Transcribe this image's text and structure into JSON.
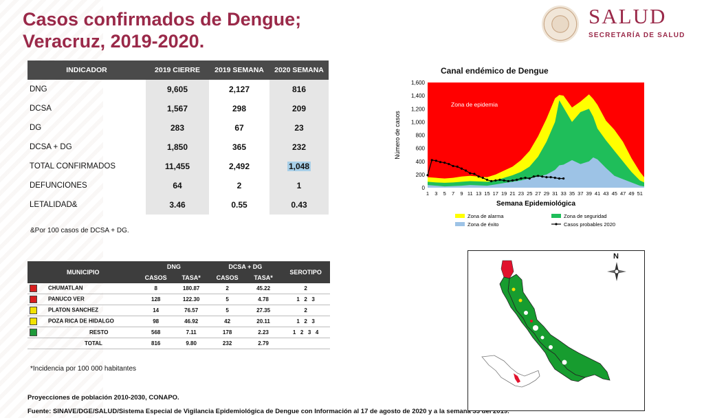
{
  "header": {
    "title_line1": "Casos confirmados de Dengue;",
    "title_line2": "Veracruz, 2019-2020.",
    "logo_word": "SALUD",
    "logo_sub": "SECRETARÍA DE SALUD",
    "seal_icon": "mexico-coat-of-arms-seal-icon"
  },
  "indicators": {
    "headers": [
      "INDICADOR",
      "2019 CIERRE",
      "2019 SEMANA",
      "2020 SEMANA"
    ],
    "rows": [
      {
        "label": "DNG",
        "v2019c": "9,605",
        "v2019s": "2,127",
        "v2020s": "816"
      },
      {
        "label": "DCSA",
        "v2019c": "1,567",
        "v2019s": "298",
        "v2020s": "209"
      },
      {
        "label": "DG",
        "v2019c": "283",
        "v2019s": "67",
        "v2020s": "23"
      },
      {
        "label": "DCSA + DG",
        "v2019c": "1,850",
        "v2019s": "365",
        "v2020s": "232"
      },
      {
        "label": "TOTAL CONFIRMADOS",
        "v2019c": "11,455",
        "v2019s": "2,492",
        "v2020s": "1,048"
      },
      {
        "label": "DEFUNCIONES",
        "v2019c": "64",
        "v2019s": "2",
        "v2020s": "1"
      },
      {
        "label": "LETALIDAD&",
        "v2019c": "3.46",
        "v2019s": "0.55",
        "v2020s": "0.43"
      }
    ],
    "footnote": "&Por 100 casos de DCSA + DG."
  },
  "municipios": {
    "headers": {
      "municipio": "MUNICIPIO",
      "dng": "DNG",
      "dcsa": "DCSA + DG",
      "casos": "CASOS",
      "tasa": "TASA*",
      "serotipo": "SEROTIPO"
    },
    "rows": [
      {
        "name": "CHUMATLAN",
        "color": "#d81e1e",
        "dng_casos": "8",
        "dng_tasa": "180.87",
        "dcsa_casos": "2",
        "dcsa_tasa": "45.22",
        "serotipos": [
          "2"
        ]
      },
      {
        "name": "PANUCO VER",
        "color": "#d81e1e",
        "dng_casos": "128",
        "dng_tasa": "122.30",
        "dcsa_casos": "5",
        "dcsa_tasa": "4.78",
        "serotipos": [
          "1",
          "2",
          "3"
        ]
      },
      {
        "name": "PLATON SANCHEZ",
        "color": "#f2e200",
        "dng_casos": "14",
        "dng_tasa": "76.57",
        "dcsa_casos": "5",
        "dcsa_tasa": "27.35",
        "serotipos": [
          "2"
        ]
      },
      {
        "name": "POZA RICA DE HIDALGO",
        "color": "#f2e200",
        "dng_casos": "98",
        "dng_tasa": "46.92",
        "dcsa_casos": "42",
        "dcsa_tasa": "20.11",
        "serotipos": [
          "1",
          "2",
          "3"
        ]
      },
      {
        "name": "RESTO",
        "color": "#1f9a3a",
        "dng_casos": "568",
        "dng_tasa": "7.11",
        "dcsa_casos": "178",
        "dcsa_tasa": "2.23",
        "serotipos": [
          "1",
          "2",
          "3",
          "4"
        ]
      },
      {
        "name": "TOTAL",
        "color": "",
        "dng_casos": "816",
        "dng_tasa": "9.80",
        "dcsa_casos": "232",
        "dcsa_tasa": "2.79",
        "serotipos": []
      }
    ],
    "footnote": "*Incidencia por 100 000 habitantes"
  },
  "notes": {
    "projection": "Proyecciones de población 2010-2030,  CONAPO.",
    "source": "Fuente: SINAVE/DGE/SALUD/Sistema Especial de Vigilancia Epidemiológica de Dengue con Información al 17 de agosto de 2020 y a la semana 33 del 2019."
  },
  "chart_data": {
    "type": "area",
    "title": "Canal endémico de Dengue",
    "xlabel": "Semana Epidemiológica",
    "ylabel": "Número de casos",
    "ylim": [
      0,
      1600
    ],
    "yticks": [
      0,
      200,
      400,
      600,
      800,
      1000,
      1200,
      1400,
      1600
    ],
    "ytick_labels": [
      "0",
      "200",
      "400",
      "600",
      "800",
      "1,000",
      "1,200",
      "1,400",
      "1,600"
    ],
    "xticks": [
      1,
      3,
      5,
      7,
      9,
      11,
      13,
      15,
      17,
      19,
      21,
      23,
      25,
      27,
      29,
      31,
      33,
      35,
      37,
      39,
      41,
      43,
      45,
      47,
      49,
      51
    ],
    "x": [
      1,
      3,
      5,
      7,
      9,
      11,
      13,
      15,
      17,
      19,
      21,
      23,
      25,
      27,
      29,
      31,
      32,
      33,
      35,
      37,
      39,
      40,
      41,
      43,
      45,
      47,
      49,
      51,
      52
    ],
    "zone_annotation": "Zona de epidemia",
    "legend_placement": "bottom",
    "series": [
      {
        "name": "Zona de alarma",
        "color": "#ffff00",
        "values": [
          160,
          150,
          140,
          150,
          170,
          180,
          170,
          160,
          200,
          260,
          320,
          420,
          560,
          780,
          1050,
          1360,
          1410,
          1400,
          1220,
          1310,
          1420,
          1350,
          1260,
          1020,
          880,
          700,
          450,
          240,
          160
        ]
      },
      {
        "name": "Zona de seguridad",
        "color": "#1fbe5a",
        "values": [
          90,
          80,
          75,
          80,
          90,
          100,
          95,
          90,
          110,
          150,
          190,
          240,
          320,
          470,
          700,
          1000,
          1330,
          1220,
          1000,
          1150,
          1200,
          1080,
          900,
          720,
          560,
          400,
          240,
          110,
          80
        ]
      },
      {
        "name": "Zona de éxito",
        "color": "#9dc3e6",
        "values": [
          40,
          30,
          20,
          25,
          30,
          40,
          35,
          30,
          50,
          70,
          90,
          110,
          140,
          170,
          200,
          270,
          340,
          350,
          420,
          360,
          400,
          460,
          430,
          300,
          180,
          130,
          80,
          30,
          20
        ]
      },
      {
        "name": "Casos probables 2020",
        "color": "#000000",
        "x": [
          1,
          2,
          3,
          4,
          5,
          6,
          7,
          8,
          9,
          10,
          11,
          12,
          13,
          14,
          15,
          16,
          17,
          18,
          19,
          20,
          21,
          22,
          23,
          24,
          25,
          26,
          27,
          28,
          29,
          30,
          31,
          32,
          33
        ],
        "values": [
          190,
          420,
          410,
          390,
          380,
          360,
          330,
          320,
          290,
          260,
          220,
          210,
          170,
          150,
          120,
          100,
          110,
          120,
          110,
          100,
          110,
          120,
          140,
          150,
          140,
          170,
          180,
          170,
          160,
          160,
          150,
          140,
          140
        ]
      }
    ]
  },
  "map": {
    "compass_label": "N",
    "compass_icon": "compass-rose-icon",
    "map_icon": "veracruz-municipal-map-icon",
    "inset_icon": "mexico-inset-map-icon"
  }
}
